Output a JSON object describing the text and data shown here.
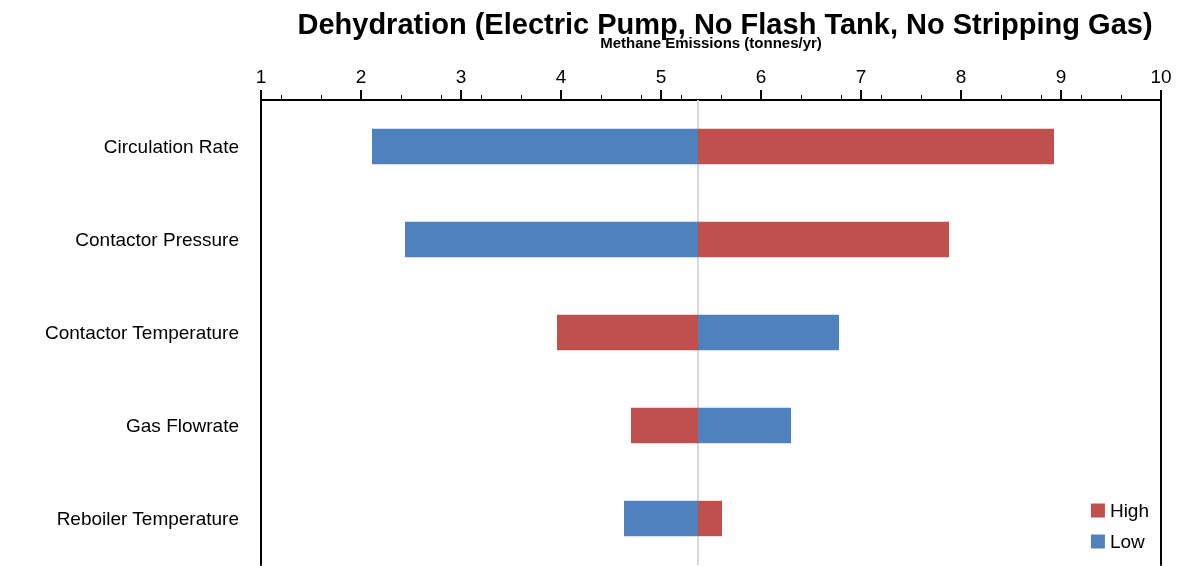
{
  "chart_data": {
    "type": "bar",
    "orientation": "horizontal",
    "title": "Dehydration (Electric Pump, No Flash Tank, No Stripping Gas)",
    "xlabel": "Methane Emissions (tonnes/yr)",
    "categories": [
      "Circulation Rate",
      "Contactor Pressure",
      "Contactor Temperature",
      "Gas Flowrate",
      "Reboiler Temperature"
    ],
    "series": [
      {
        "name": "High",
        "color": "#c0504d",
        "base": [
          5.37,
          5.37,
          3.96,
          4.7,
          5.37
        ],
        "values": [
          3.56,
          2.51,
          1.41,
          0.67,
          0.24
        ]
      },
      {
        "name": "Low",
        "color": "#4f81bd",
        "base": [
          2.11,
          2.44,
          5.37,
          5.37,
          4.63
        ],
        "values": [
          3.26,
          2.93,
          1.41,
          0.93,
          0.74
        ]
      }
    ],
    "xlim": [
      1,
      10
    ],
    "xticks": [
      1,
      2,
      3,
      4,
      5,
      6,
      7,
      8,
      9,
      10
    ],
    "ref_lines": [
      {
        "axis": "x",
        "value": 5.37,
        "color": "#d9d9d9"
      }
    ],
    "grid": false,
    "legend": "bottom right"
  }
}
